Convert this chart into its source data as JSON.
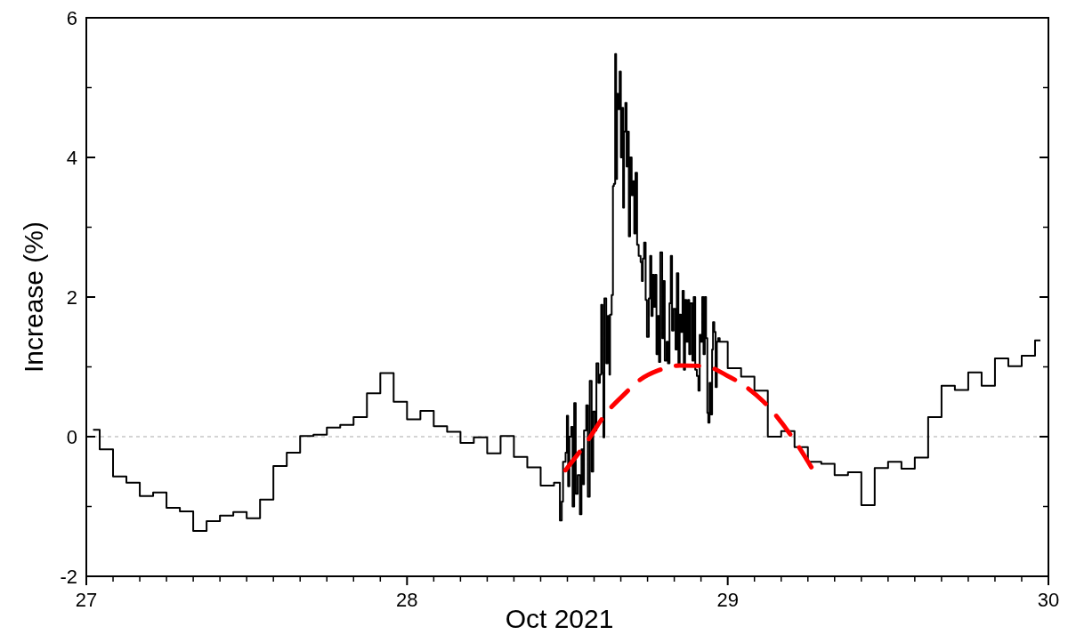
{
  "chart_data": {
    "type": "step",
    "xlabel": "Oct 2021",
    "ylabel": "Increase (%)",
    "xlim": [
      27,
      30
    ],
    "xticks": [
      27,
      28,
      29,
      30
    ],
    "ylim": [
      -2,
      6
    ],
    "yticks": [
      -2,
      0,
      2,
      4,
      6
    ],
    "grid": false,
    "ref_lines": [
      {
        "axis": "y",
        "value": 0,
        "color": "#aaaaaa",
        "line_style": "dashed"
      }
    ],
    "series": [
      {
        "color": "#000000",
        "x": [
          27.021,
          27.0417,
          27.0833,
          27.125,
          27.1667,
          27.2083,
          27.25,
          27.2917,
          27.3333,
          27.375,
          27.4167,
          27.4583,
          27.5,
          27.5417,
          27.5833,
          27.625,
          27.6667,
          27.7083,
          27.75,
          27.7917,
          27.8333,
          27.875,
          27.9167,
          27.9583,
          28.0,
          28.0417,
          28.0833,
          28.125,
          28.1667,
          28.2083,
          28.25,
          28.2917,
          28.3333,
          28.375,
          28.4167,
          28.4583,
          28.4766,
          28.4825,
          28.4865,
          28.4944,
          28.4984,
          28.5023,
          28.5063,
          28.5122,
          28.5162,
          28.5212,
          28.5261,
          28.5321,
          28.539,
          28.544,
          28.5489,
          28.5519,
          28.5588,
          28.5638,
          28.5697,
          28.5757,
          28.5806,
          28.5866,
          28.5905,
          28.5965,
          28.6014,
          28.6054,
          28.6094,
          28.6123,
          28.6153,
          28.6212,
          28.6262,
          28.6312,
          28.6331,
          28.6381,
          28.6421,
          28.645,
          28.649,
          28.652,
          28.6549,
          28.6589,
          28.6629,
          28.6668,
          28.6708,
          28.6738,
          28.6767,
          28.6807,
          28.6847,
          28.6886,
          28.6916,
          28.6956,
          28.7005,
          28.7045,
          28.7085,
          28.7124,
          28.7174,
          28.7223,
          28.7283,
          28.7322,
          28.7352,
          28.7392,
          28.7441,
          28.7481,
          28.754,
          28.758,
          28.762,
          28.7659,
          28.7699,
          28.7739,
          28.7778,
          28.7818,
          28.7857,
          28.7897,
          28.7957,
          28.7996,
          28.8036,
          28.8095,
          28.8135,
          28.8185,
          28.8224,
          28.8264,
          28.8313,
          28.8373,
          28.8413,
          28.8462,
          28.8502,
          28.8542,
          28.8591,
          28.8631,
          28.867,
          28.871,
          28.876,
          28.8799,
          28.8839,
          28.8898,
          28.8938,
          28.8987,
          28.9037,
          28.9086,
          28.9126,
          28.9166,
          28.9205,
          28.9245,
          28.9285,
          28.9324,
          28.9364,
          28.9394,
          28.9433,
          28.9473,
          28.9513,
          28.9542,
          28.9582,
          28.9622,
          28.9661,
          28.9701,
          28.975,
          29.0,
          29.0417,
          29.0833,
          29.125,
          29.1667,
          29.2083,
          29.25,
          29.2917,
          29.3333,
          29.375,
          29.4167,
          29.4583,
          29.5,
          29.5417,
          29.5833,
          29.625,
          29.6667,
          29.7083,
          29.75,
          29.7917,
          29.8333,
          29.875,
          29.9167,
          29.9583,
          29.975
        ],
        "values": [
          0.1,
          -0.18,
          -0.57,
          -0.66,
          -0.85,
          -0.8,
          -1.02,
          -1.07,
          -1.35,
          -1.21,
          -1.13,
          -1.08,
          -1.17,
          -0.9,
          -0.42,
          -0.23,
          0.01,
          0.03,
          0.13,
          0.17,
          0.28,
          0.62,
          0.91,
          0.5,
          0.25,
          0.37,
          0.15,
          0.07,
          -0.09,
          -0.01,
          -0.24,
          0.01,
          -0.29,
          -0.44,
          -0.7,
          -0.66,
          -1.2,
          -0.93,
          -0.36,
          -0.23,
          0.3,
          -0.71,
          0.0,
          0.14,
          -1.0,
          0.48,
          -0.82,
          -0.55,
          -1.11,
          -0.18,
          -0.68,
          0.09,
          0.45,
          -0.86,
          0.8,
          -0.5,
          0.36,
          0.09,
          1.05,
          0.77,
          0.89,
          1.89,
          0.91,
          -0.01,
          1.98,
          1.05,
          1.73,
          0.89,
          1.75,
          2.03,
          3.59,
          3.62,
          5.48,
          3.69,
          4.91,
          4.69,
          5.23,
          4.0,
          4.71,
          3.28,
          4.37,
          4.78,
          3.87,
          4.37,
          2.87,
          4.0,
          3.46,
          3.66,
          2.91,
          3.78,
          2.75,
          2.59,
          2.5,
          2.23,
          2.55,
          2.78,
          1.96,
          1.43,
          1.98,
          2.59,
          1.73,
          2.32,
          1.86,
          2.32,
          1.18,
          1.73,
          1.07,
          2.64,
          1.41,
          2.23,
          1.09,
          1.36,
          1.05,
          1.91,
          2.59,
          1.52,
          1.83,
          1.25,
          2.34,
          1.05,
          1.75,
          1.5,
          2.09,
          0.96,
          1.96,
          1.36,
          1.96,
          1.18,
          1.91,
          1.09,
          2.0,
          0.96,
          0.87,
          0.66,
          1.46,
          1.36,
          2.0,
          1.18,
          2.0,
          1.41,
          0.34,
          0.2,
          0.77,
          0.32,
          1.25,
          1.64,
          1.5,
          0.71,
          1.36,
          1.41,
          1.36,
          0.98,
          0.86,
          0.66,
          0.0,
          0.08,
          -0.15,
          -0.36,
          -0.39,
          -0.55,
          -0.51,
          -0.98,
          -0.45,
          -0.36,
          -0.46,
          -0.3,
          0.28,
          0.73,
          0.67,
          0.92,
          0.73,
          1.12,
          1.01,
          1.16,
          1.38,
          1.38
        ]
      },
      {
        "type": "line",
        "color": "#ff0000",
        "line_style": "dashed",
        "x": [
          28.494,
          28.56,
          28.618,
          28.678,
          28.722,
          28.784,
          28.851,
          28.93,
          28.996,
          29.061,
          29.112,
          29.209,
          29.269
        ],
        "values": [
          -0.48,
          -0.08,
          0.32,
          0.61,
          0.8,
          0.95,
          1.02,
          1.01,
          0.88,
          0.7,
          0.5,
          -0.06,
          -0.5
        ]
      }
    ]
  }
}
